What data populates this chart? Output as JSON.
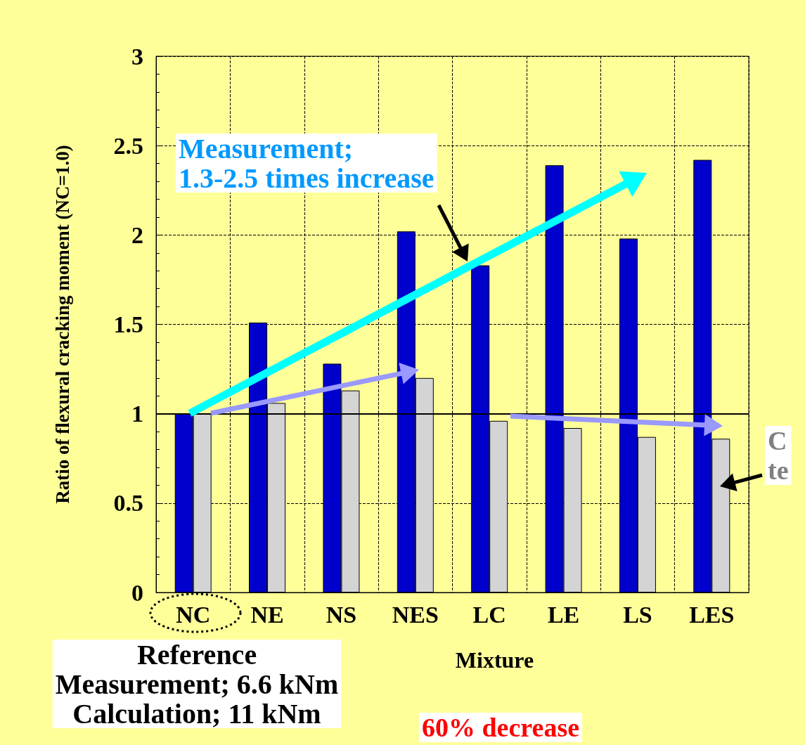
{
  "chart_data": {
    "type": "bar",
    "xlabel": "Mixture",
    "ylabel": "Ratio of flexural cracking moment (NC=1.0)",
    "categories": [
      "NC",
      "NE",
      "NS",
      "NES",
      "LC",
      "LE",
      "LS",
      "LES"
    ],
    "series": [
      {
        "color": "#0000cc",
        "values": [
          1.0,
          1.51,
          1.28,
          2.02,
          1.83,
          2.39,
          1.98,
          2.42
        ]
      },
      {
        "color": "#d4d4d4",
        "values": [
          1.0,
          1.06,
          1.13,
          1.2,
          0.96,
          0.92,
          0.87,
          0.86
        ]
      }
    ],
    "ylim": [
      0,
      3
    ],
    "yticks": [
      0,
      0.5,
      1,
      1.5,
      2,
      2.5,
      3
    ],
    "grid": true,
    "ref_lines": [
      {
        "axis": "y",
        "value": 1,
        "color": "#000000"
      }
    ],
    "annotations": [
      "Measurement;\n1.3-2.5 times increase",
      "C\nte",
      "Reference\nMeasurement; 6.6 kNm\nCalculation; 11 kNm",
      "60% decrease"
    ]
  }
}
